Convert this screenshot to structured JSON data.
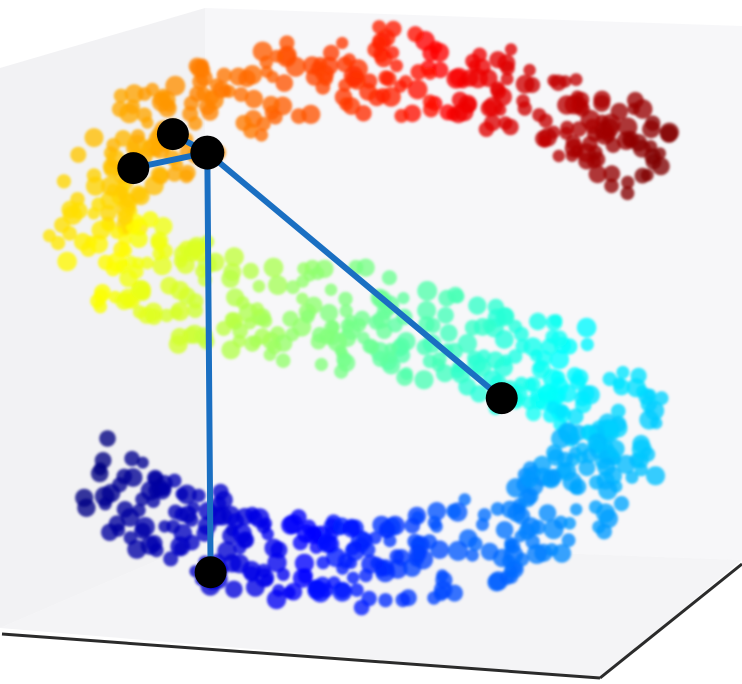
{
  "chart_data": {
    "type": "scatter",
    "dimensions": 3,
    "title": "",
    "xlabel": "",
    "ylabel": "",
    "zlabel": "",
    "grid": false,
    "colormap": "jet",
    "manifold": "s-curve",
    "point_count": 900,
    "colors": {
      "pane_left": "#f2f2f4",
      "pane_back": "#f7f7f9",
      "pane_floor": "#f4f4f6",
      "axis_edge": "#2b2b2b",
      "graph_edge": "#1a6fc2",
      "graph_node": "#000000"
    },
    "graph": {
      "center": "n0",
      "nodes": [
        {
          "id": "n0",
          "t": 0.27,
          "depth": 0.1
        },
        {
          "id": "n1",
          "t": 0.28,
          "depth": 0.45
        },
        {
          "id": "n2",
          "t": 0.31,
          "depth": 0.4
        },
        {
          "id": "n3",
          "t": 0.6,
          "depth": 0.92
        },
        {
          "id": "n4",
          "t": 0.92,
          "depth": 0.12
        }
      ],
      "edges": [
        [
          "n0",
          "n1"
        ],
        [
          "n0",
          "n2"
        ],
        [
          "n0",
          "n3"
        ],
        [
          "n0",
          "n4"
        ]
      ]
    }
  }
}
